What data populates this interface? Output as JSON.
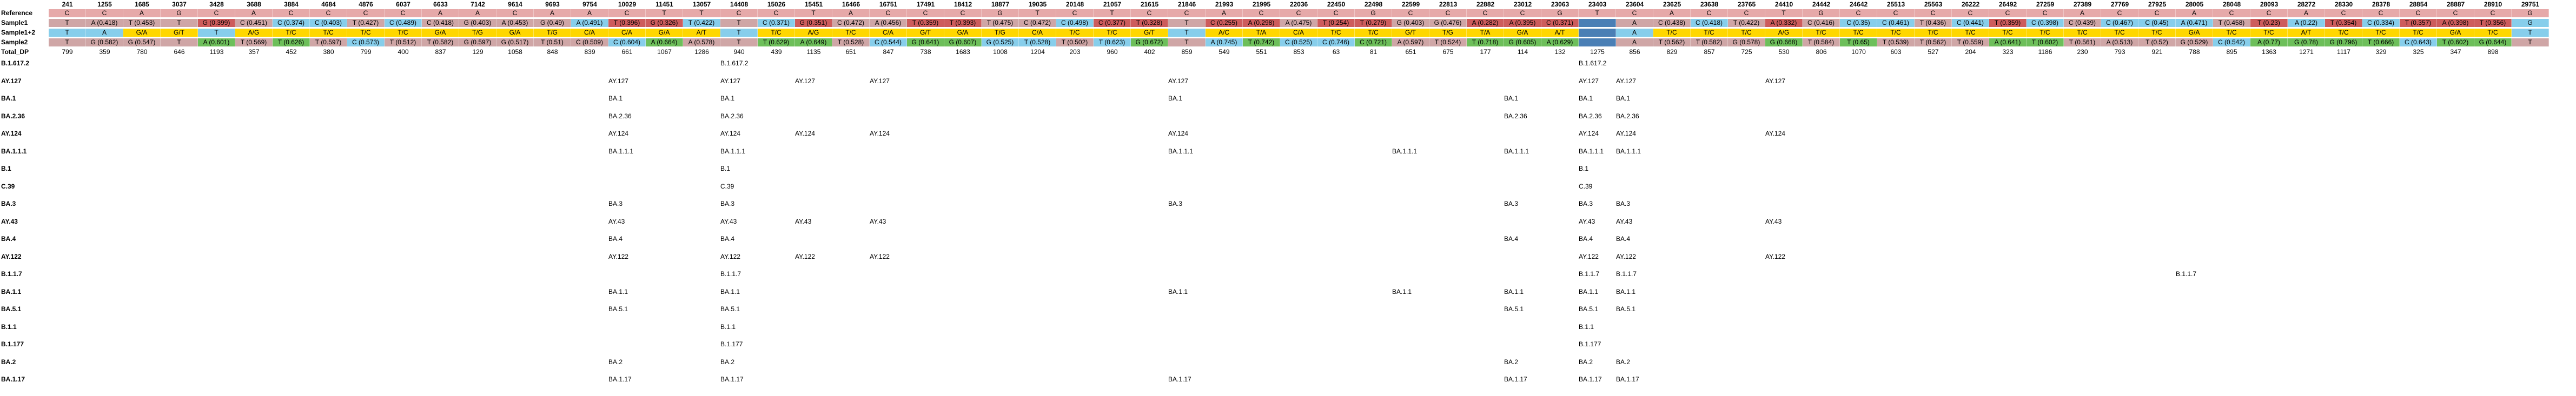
{
  "positions": [
    "241",
    "1255",
    "1685",
    "3037",
    "3428",
    "3688",
    "3884",
    "4684",
    "4876",
    "6037",
    "6633",
    "7142",
    "9614",
    "9693",
    "9754",
    "10029",
    "11451",
    "13057",
    "14408",
    "15026",
    "15451",
    "16466",
    "16751",
    "17491",
    "18412",
    "18877",
    "19035",
    "20148",
    "21057",
    "21615",
    "21846",
    "21993",
    "21995",
    "22036",
    "22450",
    "22498",
    "22599",
    "22813",
    "22882",
    "23012",
    "23063",
    "23403",
    "23604",
    "23625",
    "23638",
    "23765",
    "24410",
    "24442",
    "24642",
    "25513",
    "25563",
    "26222",
    "26492",
    "27259",
    "27389",
    "27769",
    "27925",
    "28005",
    "28048",
    "28093",
    "28272",
    "28330",
    "28378",
    "28854",
    "28887",
    "28910",
    "29751"
  ],
  "row_labels": {
    "reference": "Reference",
    "sample1": "Sample1",
    "sample12": "Sample1+2",
    "sample2": "Sample2",
    "total_dp": "Total_DP"
  },
  "reference": [
    "C",
    "C",
    "A",
    "G",
    "C",
    "A",
    "C",
    "C",
    "C",
    "C",
    "A",
    "A",
    "C",
    "A",
    "A",
    "C",
    "T",
    "T",
    "C",
    "C",
    "T",
    "A",
    "C",
    "C",
    "C",
    "G",
    "T",
    "C",
    "T",
    "C",
    "C",
    "A",
    "C",
    "C",
    "C",
    "G",
    "C",
    "C",
    "C",
    "C",
    "G",
    "T",
    "C",
    "A",
    "C",
    "C",
    "T",
    "G",
    "C",
    "C",
    "C",
    "C",
    "C",
    "C",
    "A",
    "C",
    "C",
    "A",
    "C",
    "C",
    "A",
    "C",
    "C",
    "C",
    "C",
    "C",
    "G"
  ],
  "sample1": [
    "T",
    "A (0.418)",
    "T (0.453)",
    "T",
    "G (0.399)",
    "C (0.451)",
    "C (0.374)",
    "C (0.403)",
    "T (0.427)",
    "C (0.489)",
    "C (0.418)",
    "G (0.403)",
    "A (0.453)",
    "G (0.49)",
    "A (0.491)",
    "T (0.396)",
    "G (0.326)",
    "T (0.422)",
    "T",
    "C (0.371)",
    "G (0.351)",
    "C (0.472)",
    "A (0.456)",
    "T (0.359)",
    "T (0.393)",
    "T (0.475)",
    "C (0.472)",
    "C (0.498)",
    "C (0.377)",
    "T (0.328)",
    "T",
    "C (0.255)",
    "A (0.298)",
    "A (0.475)",
    "T (0.254)",
    "T (0.279)",
    "G (0.403)",
    "G (0.476)",
    "A (0.282)",
    "A (0.395)",
    "C (0.371)",
    "",
    "A",
    "C (0.438)",
    "C (0.418)",
    "T (0.422)",
    "A (0.332)",
    "C (0.416)",
    "C (0.35)",
    "C (0.461)",
    "T (0.436)",
    "C (0.441)",
    "T (0.359)",
    "C (0.398)",
    "C (0.439)",
    "C (0.467)",
    "C (0.45)",
    "A (0.471)",
    "T (0.458)",
    "T (0.23)",
    "A (0.22)",
    "T (0.354)",
    "C (0.334)",
    "T (0.357)",
    "A (0.398)",
    "T (0.356)",
    "G"
  ],
  "sample12": [
    "T",
    "A",
    "G/A",
    "G/T",
    "T",
    "A/G",
    "T/C",
    "T/C",
    "T/C",
    "T/C",
    "G/A",
    "T/G",
    "G/A",
    "T/G",
    "C/A",
    "C/A",
    "G/A",
    "A/T",
    "T",
    "T/C",
    "A/G",
    "T/C",
    "C/A",
    "G/T",
    "G/A",
    "T/G",
    "C/A",
    "T/C",
    "T/C",
    "G/T",
    "T",
    "A/C",
    "T/A",
    "C/A",
    "T/C",
    "T/C",
    "G/T",
    "T/G",
    "T/A",
    "G/A",
    "A/T",
    "",
    "A",
    "T/C",
    "T/C",
    "T/C",
    "A/G",
    "T/C",
    "T/C",
    "T/C",
    "T/C",
    "T/C",
    "T/C",
    "T/C",
    "T/C",
    "T/C",
    "T/C",
    "G/A",
    "T/C",
    "T/C",
    "A/T",
    "T/C",
    "T/C",
    "T/C",
    "G/A",
    "T/C",
    "T"
  ],
  "sample2": [
    "T",
    "G (0.582)",
    "G (0.547)",
    "T",
    "A (0.601)",
    "T (0.569)",
    "T (0.626)",
    "T (0.597)",
    "C (0.573)",
    "T (0.512)",
    "T (0.582)",
    "G (0.597)",
    "G (0.517)",
    "T (0.51)",
    "C (0.509)",
    "C (0.604)",
    "A (0.664)",
    "A (0.578)",
    "T",
    "T (0.629)",
    "A (0.649)",
    "T (0.528)",
    "C (0.544)",
    "G (0.641)",
    "G (0.607)",
    "G (0.525)",
    "T (0.528)",
    "T (0.502)",
    "T (0.623)",
    "G (0.672)",
    "T",
    "A (0.745)",
    "T (0.742)",
    "C (0.525)",
    "C (0.746)",
    "C (0.721)",
    "A (0.597)",
    "T (0.524)",
    "T (0.718)",
    "G (0.605)",
    "A (0.629)",
    "",
    "A",
    "T (0.562)",
    "T (0.582)",
    "G (0.578)",
    "G (0.668)",
    "T (0.584)",
    "T (0.65)",
    "T (0.539)",
    "T (0.562)",
    "T (0.559)",
    "A (0.641)",
    "T (0.602)",
    "T (0.561)",
    "A (0.513)",
    "T (0.52)",
    "G (0.529)",
    "C (0.542)",
    "A (0.77)",
    "G (0.78)",
    "G (0.796)",
    "T (0.666)",
    "C (0.643)",
    "T (0.602)",
    "G (0.644)",
    "T"
  ],
  "total_dp": [
    "799",
    "359",
    "780",
    "646",
    "1193",
    "357",
    "452",
    "380",
    "799",
    "400",
    "837",
    "129",
    "1058",
    "848",
    "839",
    "661",
    "1067",
    "1286",
    "940",
    "439",
    "1135",
    "651",
    "847",
    "738",
    "1683",
    "1008",
    "1204",
    "203",
    "960",
    "402",
    "859",
    "549",
    "551",
    "853",
    "63",
    "81",
    "651",
    "675",
    "177",
    "114",
    "132",
    "1275",
    "856",
    "829",
    "857",
    "725",
    "530",
    "806",
    "1070",
    "603",
    "527",
    "204",
    "323",
    "1186",
    "230",
    "793",
    "921",
    "788",
    "895",
    "1363",
    "1271",
    "1117",
    "329",
    "325",
    "347",
    "898",
    ""
  ],
  "lineages": [
    {
      "label": "B.1.617.2",
      "hits": {
        "18": "B.1.617.2",
        "41": "B.1.617.2"
      }
    },
    {
      "label": "AY.127",
      "hits": {
        "15": "AY.127",
        "18": "AY.127",
        "20": "AY.127",
        "22": "AY.127",
        "30": "AY.127",
        "41": "AY.127",
        "42": "AY.127",
        "46": "AY.127"
      }
    },
    {
      "label": "BA.1",
      "hits": {
        "15": "BA.1",
        "18": "BA.1",
        "30": "BA.1",
        "39": "BA.1",
        "41": "BA.1",
        "42": "BA.1"
      }
    },
    {
      "label": "BA.2.36",
      "hits": {
        "15": "BA.2.36",
        "18": "BA.2.36",
        "39": "BA.2.36",
        "41": "BA.2.36",
        "42": "BA.2.36"
      }
    },
    {
      "label": "AY.124",
      "hits": {
        "15": "AY.124",
        "18": "AY.124",
        "20": "AY.124",
        "22": "AY.124",
        "30": "AY.124",
        "41": "AY.124",
        "42": "AY.124",
        "46": "AY.124"
      }
    },
    {
      "label": "BA.1.1.1",
      "hits": {
        "15": "BA.1.1.1",
        "18": "BA.1.1.1",
        "30": "BA.1.1.1",
        "36": "BA.1.1.1",
        "39": "BA.1.1.1",
        "41": "BA.1.1.1",
        "42": "BA.1.1.1"
      }
    },
    {
      "label": "B.1",
      "hits": {
        "18": "B.1",
        "41": "B.1"
      }
    },
    {
      "label": "C.39",
      "hits": {
        "18": "C.39",
        "41": "C.39"
      }
    },
    {
      "label": "BA.3",
      "hits": {
        "15": "BA.3",
        "18": "BA.3",
        "30": "BA.3",
        "39": "BA.3",
        "41": "BA.3",
        "42": "BA.3"
      }
    },
    {
      "label": "AY.43",
      "hits": {
        "15": "AY.43",
        "18": "AY.43",
        "20": "AY.43",
        "22": "AY.43",
        "41": "AY.43",
        "42": "AY.43",
        "46": "AY.43"
      }
    },
    {
      "label": "BA.4",
      "hits": {
        "15": "BA.4",
        "18": "BA.4",
        "39": "BA.4",
        "41": "BA.4",
        "42": "BA.4"
      }
    },
    {
      "label": "AY.122",
      "hits": {
        "15": "AY.122",
        "18": "AY.122",
        "20": "AY.122",
        "22": "AY.122",
        "41": "AY.122",
        "42": "AY.122",
        "46": "AY.122"
      }
    },
    {
      "label": "B.1.1.7",
      "hits": {
        "18": "B.1.1.7",
        "41": "B.1.1.7",
        "42": "B.1.1.7",
        "57": "B.1.1.7"
      }
    },
    {
      "label": "BA.1.1",
      "hits": {
        "15": "BA.1.1",
        "18": "BA.1.1",
        "30": "BA.1.1",
        "36": "BA.1.1",
        "39": "BA.1.1",
        "41": "BA.1.1",
        "42": "BA.1.1"
      }
    },
    {
      "label": "BA.5.1",
      "hits": {
        "15": "BA.5.1",
        "18": "BA.5.1",
        "39": "BA.5.1",
        "41": "BA.5.1",
        "42": "BA.5.1"
      }
    },
    {
      "label": "B.1.1",
      "hits": {
        "18": "B.1.1",
        "41": "B.1.1"
      }
    },
    {
      "label": "B.1.177",
      "hits": {
        "18": "B.1.177",
        "41": "B.1.177"
      }
    },
    {
      "label": "BA.2",
      "hits": {
        "15": "BA.2",
        "18": "BA.2",
        "39": "BA.2",
        "41": "BA.2",
        "42": "BA.2"
      }
    },
    {
      "label": "BA.1.17",
      "hits": {
        "15": "BA.1.17",
        "18": "BA.1.17",
        "30": "BA.1.17",
        "39": "BA.1.17",
        "41": "BA.1.17",
        "42": "BA.1.17"
      }
    }
  ],
  "colors": {
    "reference_bg": "#e6a9a9",
    "gold": "#ffd700",
    "ref_call": "#87ceeb",
    "alt_red": "#cd5c5c",
    "alt_green": "#6dbf5a",
    "alt_blue": "#4a7fb5",
    "header_bg": "#ffffff"
  }
}
